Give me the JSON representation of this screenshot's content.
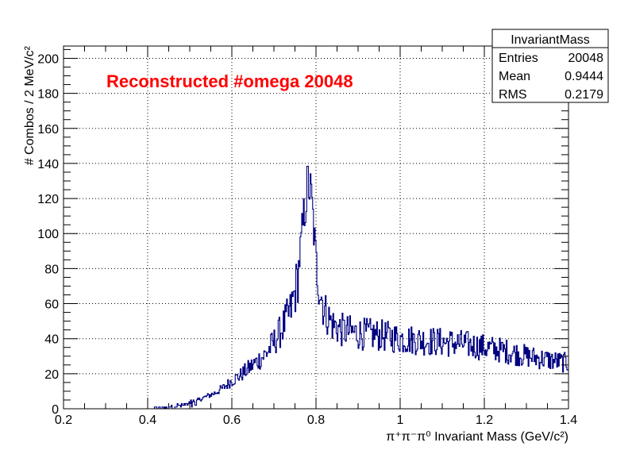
{
  "chart_data": {
    "type": "histogram",
    "xlabel": "π⁺π⁻π⁰ Invariant Mass (GeV/c²)",
    "ylabel": "# Combos / 2 MeV/c²",
    "xlim": [
      0.2,
      1.4
    ],
    "ylim": [
      0,
      207
    ],
    "x_ticks": [
      0.2,
      0.4,
      0.6,
      0.8,
      1,
      1.2,
      1.4
    ],
    "x_tick_labels": [
      "0.2",
      "0.4",
      "0.6",
      "0.8",
      "1",
      "1.2",
      "1.4"
    ],
    "y_ticks": [
      0,
      20,
      40,
      60,
      80,
      100,
      120,
      140,
      160,
      180,
      200
    ],
    "y_tick_labels": [
      "0",
      "20",
      "40",
      "60",
      "80",
      "100",
      "120",
      "140",
      "160",
      "180",
      "200"
    ],
    "grid": true,
    "bin_width": 0.002,
    "annotation": "Reconstructed #omega 20048",
    "annotation_color": "#ff0000",
    "line_color": "#000080",
    "stats_box": {
      "title": "InvariantMass",
      "rows": [
        {
          "label": "Entries",
          "value": "20048"
        },
        {
          "label": "Mean",
          "value": "0.9444"
        },
        {
          "label": "RMS",
          "value": "0.2179"
        }
      ]
    },
    "profile": {
      "note_is_shape": true,
      "points": [
        [
          0.4,
          0
        ],
        [
          0.42,
          1
        ],
        [
          0.44,
          1
        ],
        [
          0.46,
          2
        ],
        [
          0.48,
          3
        ],
        [
          0.5,
          4
        ],
        [
          0.52,
          5
        ],
        [
          0.54,
          7
        ],
        [
          0.56,
          9
        ],
        [
          0.58,
          12
        ],
        [
          0.6,
          16
        ],
        [
          0.62,
          19
        ],
        [
          0.64,
          23
        ],
        [
          0.66,
          27
        ],
        [
          0.68,
          31
        ],
        [
          0.7,
          38
        ],
        [
          0.72,
          46
        ],
        [
          0.74,
          56
        ],
        [
          0.755,
          72
        ],
        [
          0.765,
          95
        ],
        [
          0.775,
          118
        ],
        [
          0.782,
          130
        ],
        [
          0.79,
          118
        ],
        [
          0.8,
          85
        ],
        [
          0.81,
          68
        ],
        [
          0.82,
          56
        ],
        [
          0.84,
          48
        ],
        [
          0.86,
          45
        ],
        [
          0.9,
          43
        ],
        [
          0.95,
          42
        ],
        [
          1.0,
          40
        ],
        [
          1.05,
          39
        ],
        [
          1.1,
          38
        ],
        [
          1.15,
          37
        ],
        [
          1.2,
          35
        ],
        [
          1.25,
          33
        ],
        [
          1.3,
          30
        ],
        [
          1.35,
          28
        ],
        [
          1.4,
          26
        ]
      ],
      "noise_amplitude": 0.22
    }
  }
}
